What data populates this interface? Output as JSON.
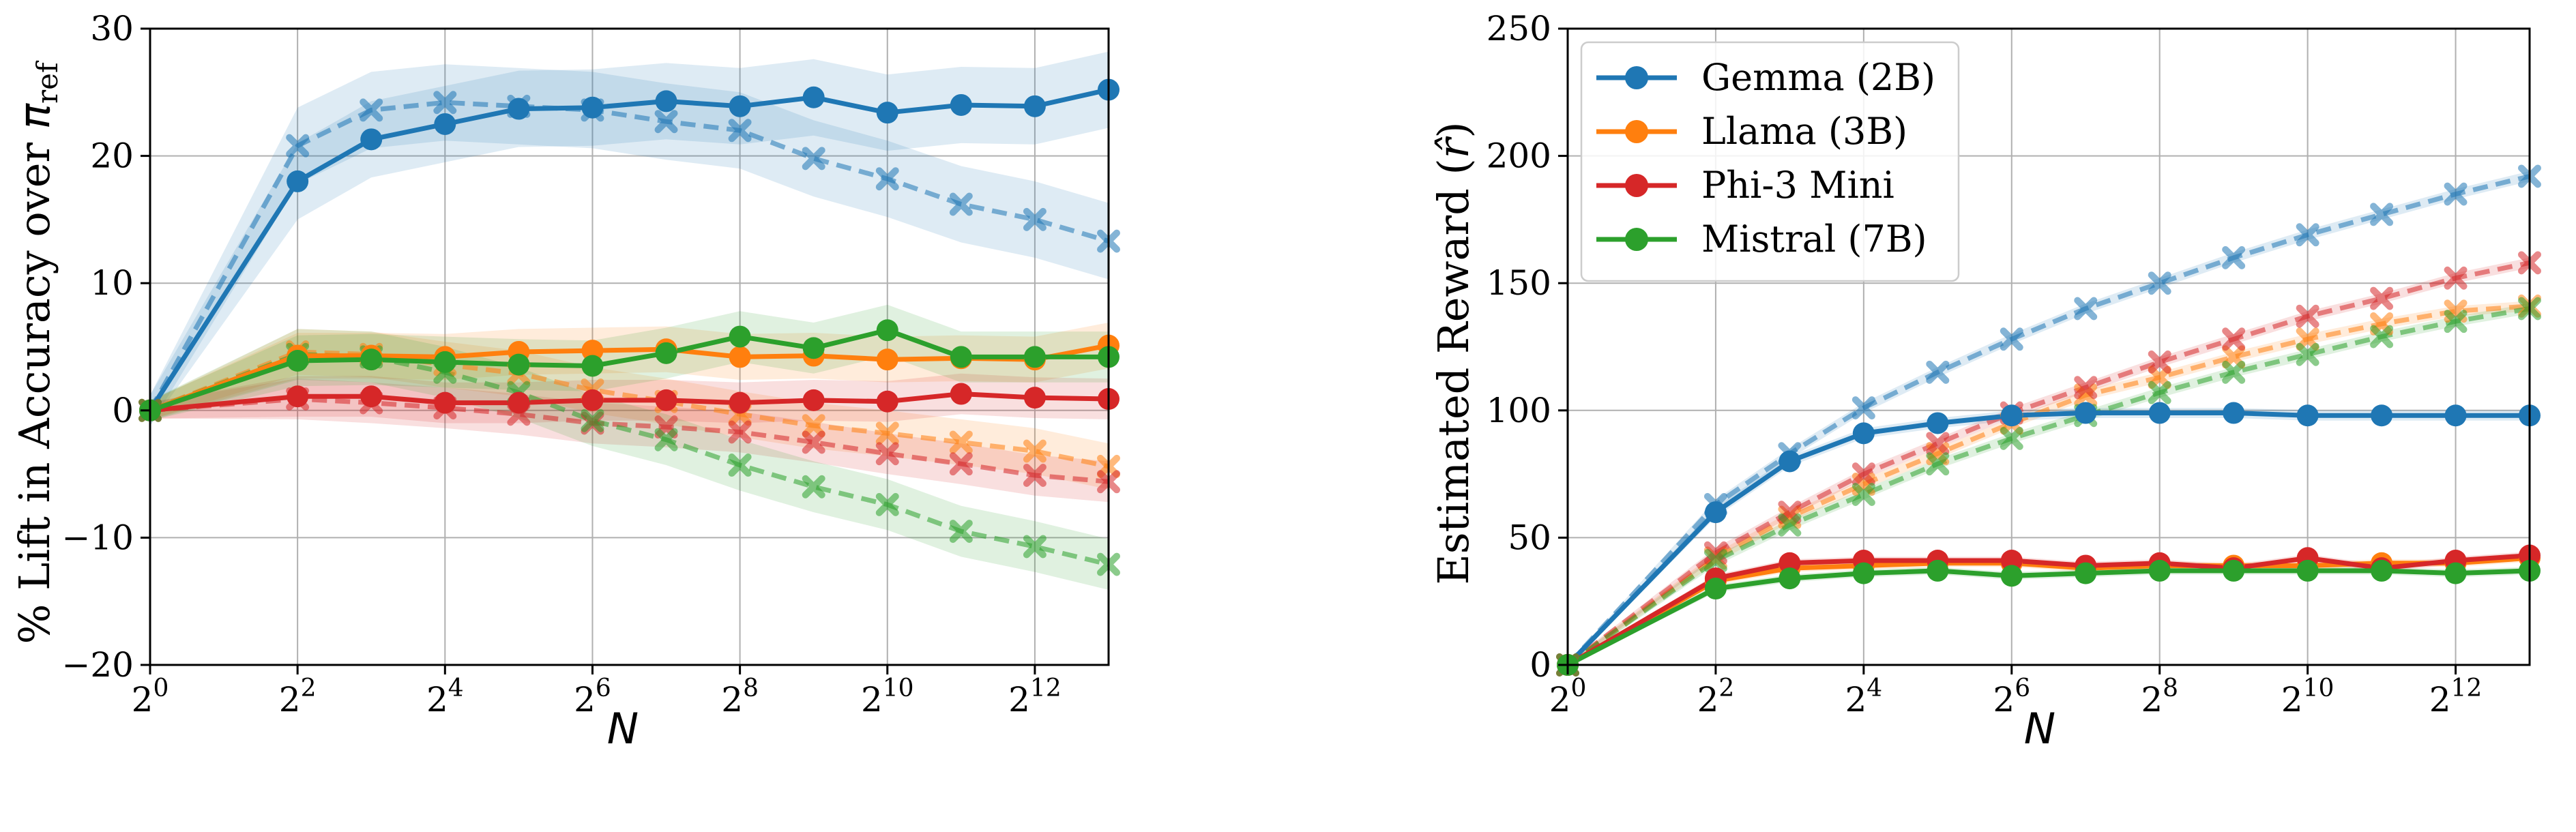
{
  "chart_data": [
    {
      "type": "line",
      "xscale": "log2",
      "xlabel": "N",
      "ylabel": "% Lift in Accuracy over π_ref",
      "ylabel_main": "% Lift in Accuracy over ",
      "ylabel_symbol": "π",
      "ylabel_sub": "ref",
      "xlim": [
        1,
        8192
      ],
      "ylim": [
        -20,
        30
      ],
      "grid": true,
      "x_ticks": [
        1,
        4,
        16,
        64,
        256,
        1024,
        4096
      ],
      "x_tick_labels": [
        {
          "base": "2",
          "exp": "0"
        },
        {
          "base": "2",
          "exp": "2"
        },
        {
          "base": "2",
          "exp": "4"
        },
        {
          "base": "2",
          "exp": "6"
        },
        {
          "base": "2",
          "exp": "8"
        },
        {
          "base": "2",
          "exp": "10"
        },
        {
          "base": "2",
          "exp": "12"
        }
      ],
      "y_ticks": [
        -20,
        -10,
        0,
        10,
        20,
        30
      ],
      "y_tick_labels": [
        "−20",
        "−10",
        "0",
        "10",
        "20",
        "30"
      ],
      "x": [
        1,
        4,
        8,
        16,
        32,
        64,
        128,
        256,
        512,
        1024,
        2048,
        4096,
        8192
      ],
      "series": [
        {
          "model": "gemma",
          "color": "#1f77b4",
          "style": "solid",
          "marker": "circle",
          "values": [
            0,
            18.0,
            21.3,
            22.5,
            23.7,
            23.8,
            24.3,
            23.9,
            24.6,
            23.4,
            24.0,
            23.9,
            25.2
          ],
          "band": 3.0
        },
        {
          "model": "gemma",
          "color": "#1f77b4",
          "style": "dashed",
          "marker": "x",
          "values": [
            0,
            20.8,
            23.6,
            24.2,
            23.9,
            23.6,
            22.7,
            22.0,
            19.8,
            18.2,
            16.2,
            15.0,
            13.3
          ],
          "band": 3.0
        },
        {
          "model": "llama",
          "color": "#ff7f0e",
          "style": "solid",
          "marker": "circle",
          "values": [
            0,
            4.3,
            4.3,
            4.2,
            4.6,
            4.7,
            4.8,
            4.2,
            4.3,
            4.0,
            4.1,
            4.0,
            5.1
          ],
          "band": 1.8
        },
        {
          "model": "llama",
          "color": "#ff7f0e",
          "style": "dashed",
          "marker": "x",
          "values": [
            0,
            4.6,
            4.4,
            3.6,
            2.9,
            1.6,
            0.7,
            -0.3,
            -1.2,
            -1.8,
            -2.5,
            -3.2,
            -4.4
          ],
          "band": 1.8
        },
        {
          "model": "phi",
          "color": "#d62728",
          "style": "solid",
          "marker": "circle",
          "values": [
            0,
            1.1,
            1.1,
            0.6,
            0.6,
            0.8,
            0.8,
            0.6,
            0.8,
            0.7,
            1.3,
            1.0,
            0.9
          ],
          "band": 1.6
        },
        {
          "model": "phi",
          "color": "#d62728",
          "style": "dashed",
          "marker": "x",
          "values": [
            0,
            0.9,
            0.6,
            0.2,
            -0.3,
            -1.0,
            -1.3,
            -1.7,
            -2.5,
            -3.4,
            -4.2,
            -5.1,
            -5.6
          ],
          "band": 1.6
        },
        {
          "model": "mistral",
          "color": "#2ca02c",
          "style": "solid",
          "marker": "circle",
          "values": [
            0,
            3.9,
            4.0,
            3.8,
            3.6,
            3.5,
            4.5,
            5.8,
            4.9,
            6.3,
            4.2,
            4.2,
            4.2
          ],
          "band": 2.0
        },
        {
          "model": "mistral",
          "color": "#2ca02c",
          "style": "dashed",
          "marker": "x",
          "values": [
            0,
            4.4,
            4.2,
            3.0,
            1.4,
            -0.8,
            -2.3,
            -4.3,
            -6.0,
            -7.4,
            -9.5,
            -10.7,
            -12.1
          ],
          "band": 2.0
        }
      ]
    },
    {
      "type": "line",
      "xscale": "log2",
      "xlabel": "N",
      "ylabel": "Estimated Reward (r̂)",
      "ylabel_main": "Estimated Reward (",
      "ylabel_symbol": "r̂",
      "ylabel_close": ")",
      "xlim": [
        1,
        8192
      ],
      "ylim": [
        0,
        250
      ],
      "grid": true,
      "legend": "top-left",
      "x_ticks": [
        1,
        4,
        16,
        64,
        256,
        1024,
        4096
      ],
      "x_tick_labels": [
        {
          "base": "2",
          "exp": "0"
        },
        {
          "base": "2",
          "exp": "2"
        },
        {
          "base": "2",
          "exp": "4"
        },
        {
          "base": "2",
          "exp": "6"
        },
        {
          "base": "2",
          "exp": "8"
        },
        {
          "base": "2",
          "exp": "10"
        },
        {
          "base": "2",
          "exp": "12"
        }
      ],
      "y_ticks": [
        0,
        50,
        100,
        150,
        200,
        250
      ],
      "y_tick_labels": [
        "0",
        "50",
        "100",
        "150",
        "200",
        "250"
      ],
      "x": [
        1,
        4,
        8,
        16,
        32,
        64,
        128,
        256,
        512,
        1024,
        2048,
        4096,
        8192
      ],
      "series": [
        {
          "model": "gemma",
          "color": "#1f77b4",
          "style": "solid",
          "marker": "circle",
          "values": [
            0,
            60,
            80,
            91,
            95,
            98,
            99,
            99,
            99,
            98,
            98,
            98,
            98
          ],
          "band": 2.0
        },
        {
          "model": "gemma",
          "color": "#1f77b4",
          "style": "dashed",
          "marker": "x",
          "values": [
            0,
            63,
            83,
            101,
            115,
            128,
            140,
            150,
            160,
            169,
            177,
            185,
            192
          ],
          "band": 2.0
        },
        {
          "model": "llama",
          "color": "#ff7f0e",
          "style": "solid",
          "marker": "circle",
          "values": [
            0,
            33,
            38,
            39,
            40,
            40,
            38,
            39,
            39,
            39,
            40,
            40,
            42
          ],
          "band": 1.5
        },
        {
          "model": "llama",
          "color": "#ff7f0e",
          "style": "dashed",
          "marker": "x",
          "values": [
            0,
            42,
            58,
            71,
            83,
            95,
            106,
            113,
            121,
            128,
            134,
            139,
            141
          ],
          "band": 2.0
        },
        {
          "model": "phi",
          "color": "#d62728",
          "style": "solid",
          "marker": "circle",
          "values": [
            0,
            34,
            40,
            41,
            41,
            41,
            39,
            40,
            38,
            42,
            38,
            41,
            43
          ],
          "band": 1.5
        },
        {
          "model": "phi",
          "color": "#d62728",
          "style": "dashed",
          "marker": "x",
          "values": [
            0,
            44,
            60,
            75,
            87,
            99,
            109,
            119,
            128,
            137,
            144,
            152,
            158
          ],
          "band": 2.0
        },
        {
          "model": "mistral",
          "color": "#2ca02c",
          "style": "solid",
          "marker": "circle",
          "values": [
            0,
            30,
            34,
            36,
            37,
            35,
            36,
            37,
            37,
            37,
            37,
            36,
            37
          ],
          "band": 1.5
        },
        {
          "model": "mistral",
          "color": "#2ca02c",
          "style": "dashed",
          "marker": "x",
          "values": [
            0,
            41,
            55,
            67,
            79,
            89,
            98,
            107,
            115,
            122,
            129,
            135,
            140
          ],
          "band": 2.0
        }
      ],
      "legend_entries": [
        {
          "label": "Gemma (2B)",
          "color": "#1f77b4"
        },
        {
          "label": "Llama (3B)",
          "color": "#ff7f0e"
        },
        {
          "label": "Phi-3 Mini",
          "color": "#d62728"
        },
        {
          "label": "Mistral (7B)",
          "color": "#2ca02c"
        }
      ]
    }
  ]
}
